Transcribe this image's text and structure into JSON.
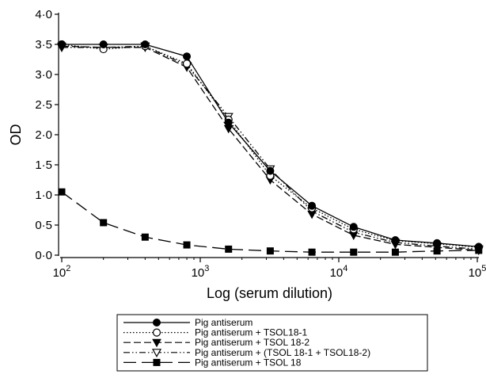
{
  "chart_data": {
    "type": "line",
    "xscale": "log",
    "xlabel": "Log (serum dilution)",
    "ylabel": "OD",
    "xlim": [
      100,
      100000
    ],
    "ylim": [
      0,
      4
    ],
    "x_ticks": [
      {
        "value": 100,
        "base": "10",
        "exp": "2"
      },
      {
        "value": 1000,
        "base": "10",
        "exp": "3"
      },
      {
        "value": 10000,
        "base": "10",
        "exp": "4"
      },
      {
        "value": 100000,
        "base": "10",
        "exp": "5"
      }
    ],
    "y_ticks": [
      {
        "value": 0,
        "label": "0·0"
      },
      {
        "value": 0.5,
        "label": "0·5"
      },
      {
        "value": 1,
        "label": "1·0"
      },
      {
        "value": 1.5,
        "label": "1·5"
      },
      {
        "value": 2,
        "label": "2·0"
      },
      {
        "value": 2.5,
        "label": "2·5"
      },
      {
        "value": 3,
        "label": "3·0"
      },
      {
        "value": 3.5,
        "label": "3·5"
      },
      {
        "value": 4,
        "label": "4·0"
      }
    ],
    "x": [
      100,
      200,
      400,
      800,
      1600,
      3200,
      6400,
      12800,
      25600,
      51200,
      102400
    ],
    "series": [
      {
        "name": "Pig antiserum",
        "marker": "filled-circle",
        "dash": "",
        "color": "#000000",
        "values": [
          3.5,
          3.5,
          3.5,
          3.3,
          2.2,
          1.4,
          0.82,
          0.47,
          0.25,
          0.2,
          0.14
        ]
      },
      {
        "name": "Pig antiserum + TSOL18-1",
        "marker": "open-circle",
        "dash": "1.5,2.5",
        "color": "#000000",
        "values": [
          3.5,
          3.42,
          3.47,
          3.18,
          2.25,
          1.32,
          0.78,
          0.43,
          0.24,
          0.19,
          0.13
        ]
      },
      {
        "name": "Pig antiserum + TSOL 18-2",
        "marker": "filled-triangle-down",
        "dash": "9,4",
        "color": "#000000",
        "values": [
          3.47,
          3.45,
          3.45,
          3.12,
          2.1,
          1.25,
          0.68,
          0.33,
          0.18,
          0.13,
          0.08
        ]
      },
      {
        "name": "Pig antiserum + (TSOL 18-1 + TSOL18-2)",
        "marker": "open-triangle-down",
        "dash": "8,3,1.5,3,1.5,3",
        "color": "#000000",
        "values": [
          3.45,
          3.45,
          3.47,
          3.15,
          2.3,
          1.43,
          0.73,
          0.38,
          0.21,
          0.15,
          0.1
        ]
      },
      {
        "name": "Pig antiserum + TSOL 18",
        "marker": "filled-square",
        "dash": "16,7",
        "color": "#000000",
        "values": [
          1.05,
          0.54,
          0.3,
          0.17,
          0.1,
          0.07,
          0.05,
          0.05,
          0.05,
          0.07,
          0.08
        ]
      }
    ],
    "grid": false,
    "legend_position": "bottom"
  }
}
